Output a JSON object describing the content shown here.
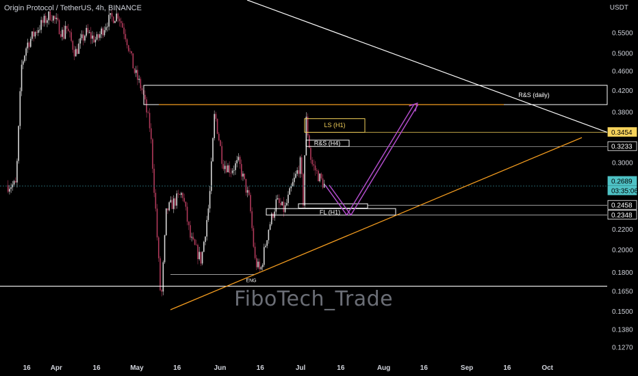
{
  "header": {
    "symbol_line": "Origin Protocol / TetherUS, 4h, BINANCE",
    "currency": "USDT"
  },
  "watermark": "FiboTech_Trade",
  "colors": {
    "background": "#000000",
    "candle_up": "#d9d9d9",
    "candle_down": "#b23a5b",
    "orange": "#f39c1f",
    "purple": "#b04cc9",
    "white": "#ffffff",
    "yellow_box": "#f5d25b",
    "current_price": "#4ec2c5"
  },
  "chart_data": {
    "type": "candlestick",
    "title": "Origin Protocol / TetherUS, 4h, BINANCE",
    "y_axis": {
      "unit": "USDT",
      "scale": "log",
      "ticks": [
        "0.5500",
        "0.5000",
        "0.4600",
        "0.4200",
        "0.3800",
        "0.3000",
        "0.2200",
        "0.2000",
        "0.1800",
        "0.1650",
        "0.1500",
        "0.1380",
        "0.1270"
      ],
      "range": [
        0.122,
        0.64
      ]
    },
    "x_axis": {
      "ticks": [
        "16",
        "Apr",
        "16",
        "May",
        "16",
        "Jun",
        "16",
        "Jul",
        "16",
        "Aug",
        "16",
        "Sep",
        "16",
        "Oct"
      ]
    },
    "price_labels": [
      {
        "value": "0.3454",
        "style": "yellow"
      },
      {
        "value": "0.3233",
        "style": "white"
      },
      {
        "value": "0.2689",
        "style": "current"
      },
      {
        "value": "03:35:06",
        "style": "current-timer"
      },
      {
        "value": "0.2458",
        "style": "white"
      },
      {
        "value": "0.2348",
        "style": "white"
      }
    ],
    "current_price": 0.2689,
    "annotations": [
      {
        "text": "R&S (daily)",
        "kind": "box",
        "low": 0.393,
        "high": 0.43
      },
      {
        "text": "LS (H1)",
        "kind": "box",
        "low": 0.3454,
        "high": 0.368
      },
      {
        "text": "R&S (H4)",
        "kind": "box",
        "low": 0.3233,
        "high": 0.333
      },
      {
        "text": "FL (H1)",
        "kind": "box",
        "low": 0.2348,
        "high": 0.242
      },
      {
        "text": "ENG",
        "kind": "label",
        "value": 0.178
      }
    ],
    "horizontal_levels": [
      0.3454,
      0.3233,
      0.2458,
      0.2348,
      0.1685,
      0.393
    ],
    "price_path": [
      {
        "d": "Mar 9",
        "p": 0.27
      },
      {
        "d": "Mar 12",
        "p": 0.27
      },
      {
        "d": "Mar 14",
        "p": 0.47
      },
      {
        "d": "Mar 16",
        "p": 0.52
      },
      {
        "d": "Mar 20",
        "p": 0.56
      },
      {
        "d": "Mar 25",
        "p": 0.6
      },
      {
        "d": "Mar 30",
        "p": 0.54
      },
      {
        "d": "Apr 3",
        "p": 0.6
      },
      {
        "d": "Apr 8",
        "p": 0.5
      },
      {
        "d": "Apr 12",
        "p": 0.55
      },
      {
        "d": "Apr 16",
        "p": 0.53
      },
      {
        "d": "Apr 20",
        "p": 0.58
      },
      {
        "d": "Apr 24",
        "p": 0.6
      },
      {
        "d": "Apr 27",
        "p": 0.54
      },
      {
        "d": "Apr 30",
        "p": 0.46
      },
      {
        "d": "May 3",
        "p": 0.42
      },
      {
        "d": "May 6",
        "p": 0.35
      },
      {
        "d": "May 8",
        "p": 0.24
      },
      {
        "d": "May 10",
        "p": 0.155
      },
      {
        "d": "May 12",
        "p": 0.24
      },
      {
        "d": "May 15",
        "p": 0.25
      },
      {
        "d": "May 18",
        "p": 0.26
      },
      {
        "d": "May 21",
        "p": 0.21
      },
      {
        "d": "May 25",
        "p": 0.19
      },
      {
        "d": "May 28",
        "p": 0.25
      },
      {
        "d": "May 30",
        "p": 0.38
      },
      {
        "d": "Jun 2",
        "p": 0.3
      },
      {
        "d": "Jun 5",
        "p": 0.29
      },
      {
        "d": "Jun 8",
        "p": 0.3
      },
      {
        "d": "Jun 12",
        "p": 0.25
      },
      {
        "d": "Jun 14",
        "p": 0.19
      },
      {
        "d": "Jun 16",
        "p": 0.18
      },
      {
        "d": "Jun 19",
        "p": 0.22
      },
      {
        "d": "Jun 22",
        "p": 0.25
      },
      {
        "d": "Jun 25",
        "p": 0.24
      },
      {
        "d": "Jun 28",
        "p": 0.27
      },
      {
        "d": "Jul 1",
        "p": 0.3
      },
      {
        "d": "Jul 2",
        "p": 0.25
      },
      {
        "d": "Jul 3",
        "p": 0.37
      },
      {
        "d": "Jul 5",
        "p": 0.3
      },
      {
        "d": "Jul 8",
        "p": 0.28
      },
      {
        "d": "Jul 10",
        "p": 0.2689
      }
    ],
    "projection": [
      {
        "d": "Jul 14",
        "p": 0.263
      },
      {
        "d": "Jul 19",
        "p": 0.2348
      },
      {
        "d": "Aug 13",
        "p": 0.393
      }
    ]
  }
}
